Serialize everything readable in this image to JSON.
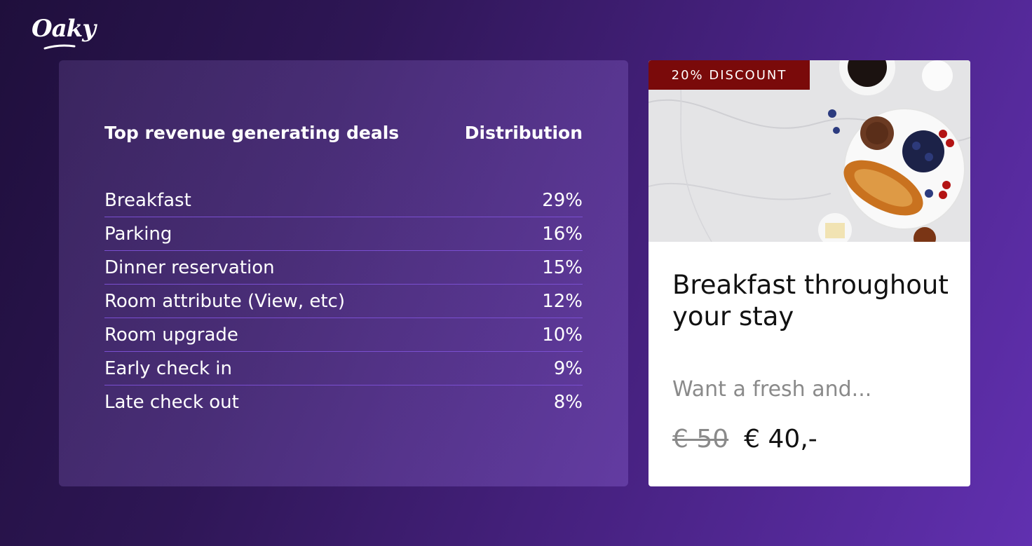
{
  "brand": {
    "logo_text": "Oaky"
  },
  "deals_table": {
    "header_deal": "Top revenue generating deals",
    "header_distribution": "Distribution",
    "rows": [
      {
        "deal": "Breakfast",
        "share": "29%"
      },
      {
        "deal": "Parking",
        "share": "16%"
      },
      {
        "deal": "Dinner reservation",
        "share": "15%"
      },
      {
        "deal": "Room attribute (View, etc)",
        "share": "12%"
      },
      {
        "deal": "Room upgrade",
        "share": "10%"
      },
      {
        "deal": "Early check in",
        "share": "9%"
      },
      {
        "deal": "Late check out",
        "share": "8%"
      }
    ]
  },
  "deal_card": {
    "badge": "20% DISCOUNT",
    "title": "Breakfast throughout your stay",
    "description": "Want a fresh and...",
    "old_price": "€ 50",
    "new_price": "€ 40,-"
  },
  "colors": {
    "badge_background": "#7a0a0a",
    "row_divider": "#7a4fd0",
    "background_start": "#1f0f3c",
    "background_end": "#6130b0"
  }
}
